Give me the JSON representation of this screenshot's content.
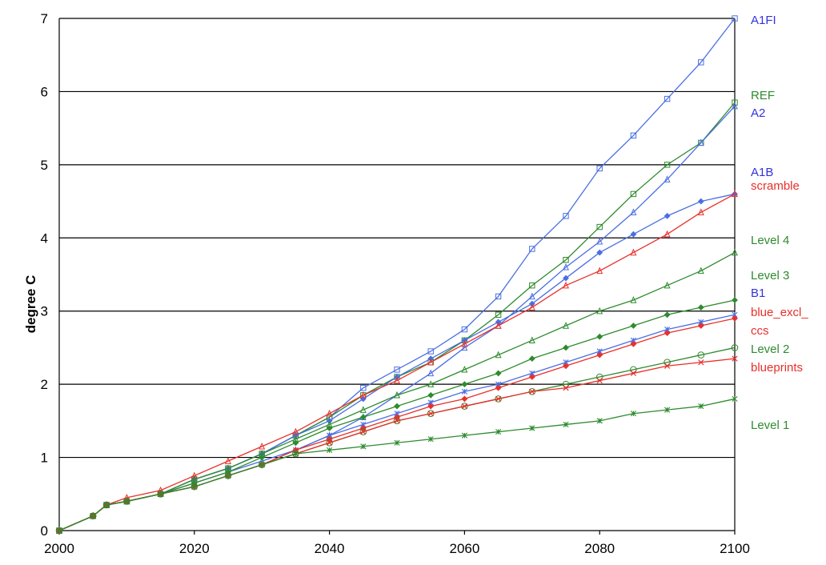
{
  "chart_data": {
    "type": "line",
    "title": "",
    "xlabel": "",
    "ylabel": "degree C",
    "xlim": [
      2000,
      2100
    ],
    "ylim": [
      0,
      7
    ],
    "x_ticks": [
      "2000",
      "2020",
      "2040",
      "2060",
      "2080",
      "2100"
    ],
    "y_ticks": [
      "0",
      "1",
      "2",
      "3",
      "4",
      "5",
      "6",
      "7"
    ],
    "grid": "horizontal",
    "legend": "right-side end labels",
    "series": [
      {
        "name": "A1FI",
        "color": "#4a6fe3",
        "marker": "square",
        "points": [
          [
            2000,
            0
          ],
          [
            2005,
            0.2
          ],
          [
            2007,
            0.35
          ],
          [
            2010,
            0.4
          ],
          [
            2015,
            0.5
          ],
          [
            2020,
            0.7
          ],
          [
            2025,
            0.85
          ],
          [
            2030,
            1.05
          ],
          [
            2035,
            1.3
          ],
          [
            2040,
            1.55
          ],
          [
            2045,
            1.95
          ],
          [
            2050,
            2.2
          ],
          [
            2055,
            2.45
          ],
          [
            2060,
            2.75
          ],
          [
            2065,
            3.2
          ],
          [
            2070,
            3.85
          ],
          [
            2075,
            4.3
          ],
          [
            2080,
            4.95
          ],
          [
            2085,
            5.4
          ],
          [
            2090,
            5.9
          ],
          [
            2095,
            6.4
          ],
          [
            2100,
            7.0
          ]
        ]
      },
      {
        "name": "REF",
        "color": "#2e8b2e",
        "marker": "square",
        "points": [
          [
            2000,
            0
          ],
          [
            2005,
            0.2
          ],
          [
            2007,
            0.35
          ],
          [
            2010,
            0.4
          ],
          [
            2015,
            0.5
          ],
          [
            2020,
            0.7
          ],
          [
            2025,
            0.85
          ],
          [
            2030,
            1.05
          ],
          [
            2035,
            1.3
          ],
          [
            2040,
            1.55
          ],
          [
            2045,
            1.85
          ],
          [
            2050,
            2.1
          ],
          [
            2055,
            2.3
          ],
          [
            2060,
            2.6
          ],
          [
            2065,
            2.95
          ],
          [
            2070,
            3.35
          ],
          [
            2075,
            3.7
          ],
          [
            2080,
            4.15
          ],
          [
            2085,
            4.6
          ],
          [
            2090,
            5.0
          ],
          [
            2095,
            5.3
          ],
          [
            2100,
            5.85
          ]
        ]
      },
      {
        "name": "A2",
        "color": "#4a6fe3",
        "marker": "triangle",
        "points": [
          [
            2000,
            0
          ],
          [
            2005,
            0.2
          ],
          [
            2007,
            0.35
          ],
          [
            2010,
            0.4
          ],
          [
            2015,
            0.5
          ],
          [
            2020,
            0.65
          ],
          [
            2025,
            0.8
          ],
          [
            2030,
            0.95
          ],
          [
            2035,
            1.1
          ],
          [
            2040,
            1.3
          ],
          [
            2045,
            1.55
          ],
          [
            2050,
            1.85
          ],
          [
            2055,
            2.15
          ],
          [
            2060,
            2.5
          ],
          [
            2065,
            2.8
          ],
          [
            2070,
            3.2
          ],
          [
            2075,
            3.6
          ],
          [
            2080,
            3.95
          ],
          [
            2085,
            4.35
          ],
          [
            2090,
            4.8
          ],
          [
            2095,
            5.3
          ],
          [
            2100,
            5.8
          ]
        ]
      },
      {
        "name": "A1B",
        "color": "#4a6fe3",
        "marker": "diamond",
        "points": [
          [
            2000,
            0
          ],
          [
            2005,
            0.2
          ],
          [
            2007,
            0.35
          ],
          [
            2010,
            0.4
          ],
          [
            2015,
            0.5
          ],
          [
            2020,
            0.7
          ],
          [
            2025,
            0.85
          ],
          [
            2030,
            1.05
          ],
          [
            2035,
            1.3
          ],
          [
            2040,
            1.5
          ],
          [
            2045,
            1.8
          ],
          [
            2050,
            2.1
          ],
          [
            2055,
            2.35
          ],
          [
            2060,
            2.6
          ],
          [
            2065,
            2.85
          ],
          [
            2070,
            3.1
          ],
          [
            2075,
            3.45
          ],
          [
            2080,
            3.8
          ],
          [
            2085,
            4.05
          ],
          [
            2090,
            4.3
          ],
          [
            2095,
            4.5
          ],
          [
            2100,
            4.6
          ]
        ]
      },
      {
        "name": "scramble",
        "color": "#e8302a",
        "marker": "triangle",
        "points": [
          [
            2000,
            0
          ],
          [
            2005,
            0.2
          ],
          [
            2007,
            0.35
          ],
          [
            2010,
            0.45
          ],
          [
            2015,
            0.55
          ],
          [
            2020,
            0.75
          ],
          [
            2025,
            0.95
          ],
          [
            2030,
            1.15
          ],
          [
            2035,
            1.35
          ],
          [
            2040,
            1.6
          ],
          [
            2045,
            1.85
          ],
          [
            2050,
            2.05
          ],
          [
            2055,
            2.3
          ],
          [
            2060,
            2.55
          ],
          [
            2065,
            2.8
          ],
          [
            2070,
            3.05
          ],
          [
            2075,
            3.35
          ],
          [
            2080,
            3.55
          ],
          [
            2085,
            3.8
          ],
          [
            2090,
            4.05
          ],
          [
            2095,
            4.35
          ],
          [
            2100,
            4.6
          ]
        ]
      },
      {
        "name": "Level 4",
        "color": "#2e8b2e",
        "marker": "triangle",
        "points": [
          [
            2000,
            0
          ],
          [
            2005,
            0.2
          ],
          [
            2007,
            0.35
          ],
          [
            2010,
            0.4
          ],
          [
            2015,
            0.5
          ],
          [
            2020,
            0.7
          ],
          [
            2025,
            0.85
          ],
          [
            2030,
            1.05
          ],
          [
            2035,
            1.25
          ],
          [
            2040,
            1.45
          ],
          [
            2045,
            1.65
          ],
          [
            2050,
            1.85
          ],
          [
            2055,
            2.0
          ],
          [
            2060,
            2.2
          ],
          [
            2065,
            2.4
          ],
          [
            2070,
            2.6
          ],
          [
            2075,
            2.8
          ],
          [
            2080,
            3.0
          ],
          [
            2085,
            3.15
          ],
          [
            2090,
            3.35
          ],
          [
            2095,
            3.55
          ],
          [
            2100,
            3.8
          ]
        ]
      },
      {
        "name": "Level 3",
        "color": "#2e8b2e",
        "marker": "diamond",
        "points": [
          [
            2000,
            0
          ],
          [
            2005,
            0.2
          ],
          [
            2007,
            0.35
          ],
          [
            2010,
            0.4
          ],
          [
            2015,
            0.5
          ],
          [
            2020,
            0.65
          ],
          [
            2025,
            0.8
          ],
          [
            2030,
            1.0
          ],
          [
            2035,
            1.2
          ],
          [
            2040,
            1.4
          ],
          [
            2045,
            1.55
          ],
          [
            2050,
            1.7
          ],
          [
            2055,
            1.85
          ],
          [
            2060,
            2.0
          ],
          [
            2065,
            2.15
          ],
          [
            2070,
            2.35
          ],
          [
            2075,
            2.5
          ],
          [
            2080,
            2.65
          ],
          [
            2085,
            2.8
          ],
          [
            2090,
            2.95
          ],
          [
            2095,
            3.05
          ],
          [
            2100,
            3.15
          ]
        ]
      },
      {
        "name": "B1",
        "color": "#4a6fe3",
        "marker": "asterisk",
        "points": [
          [
            2000,
            0
          ],
          [
            2005,
            0.2
          ],
          [
            2007,
            0.35
          ],
          [
            2010,
            0.4
          ],
          [
            2015,
            0.5
          ],
          [
            2020,
            0.6
          ],
          [
            2025,
            0.75
          ],
          [
            2030,
            0.9
          ],
          [
            2035,
            1.1
          ],
          [
            2040,
            1.3
          ],
          [
            2045,
            1.45
          ],
          [
            2050,
            1.6
          ],
          [
            2055,
            1.75
          ],
          [
            2060,
            1.9
          ],
          [
            2065,
            2.0
          ],
          [
            2070,
            2.15
          ],
          [
            2075,
            2.3
          ],
          [
            2080,
            2.45
          ],
          [
            2085,
            2.6
          ],
          [
            2090,
            2.75
          ],
          [
            2095,
            2.85
          ],
          [
            2100,
            2.95
          ]
        ]
      },
      {
        "name": "blue_excl_ccs",
        "color": "#e8302a",
        "marker": "diamond",
        "points": [
          [
            2000,
            0
          ],
          [
            2005,
            0.2
          ],
          [
            2007,
            0.35
          ],
          [
            2010,
            0.4
          ],
          [
            2015,
            0.5
          ],
          [
            2020,
            0.6
          ],
          [
            2025,
            0.75
          ],
          [
            2030,
            0.9
          ],
          [
            2035,
            1.1
          ],
          [
            2040,
            1.25
          ],
          [
            2045,
            1.4
          ],
          [
            2050,
            1.55
          ],
          [
            2055,
            1.7
          ],
          [
            2060,
            1.8
          ],
          [
            2065,
            1.95
          ],
          [
            2070,
            2.1
          ],
          [
            2075,
            2.25
          ],
          [
            2080,
            2.4
          ],
          [
            2085,
            2.55
          ],
          [
            2090,
            2.7
          ],
          [
            2095,
            2.8
          ],
          [
            2100,
            2.9
          ]
        ]
      },
      {
        "name": "Level 2",
        "color": "#2e8b2e",
        "marker": "circle",
        "points": [
          [
            2000,
            0
          ],
          [
            2005,
            0.2
          ],
          [
            2007,
            0.35
          ],
          [
            2010,
            0.4
          ],
          [
            2015,
            0.5
          ],
          [
            2020,
            0.6
          ],
          [
            2025,
            0.75
          ],
          [
            2030,
            0.9
          ],
          [
            2035,
            1.05
          ],
          [
            2040,
            1.2
          ],
          [
            2045,
            1.35
          ],
          [
            2050,
            1.5
          ],
          [
            2055,
            1.6
          ],
          [
            2060,
            1.7
          ],
          [
            2065,
            1.8
          ],
          [
            2070,
            1.9
          ],
          [
            2075,
            2.0
          ],
          [
            2080,
            2.1
          ],
          [
            2085,
            2.2
          ],
          [
            2090,
            2.3
          ],
          [
            2095,
            2.4
          ],
          [
            2100,
            2.5
          ]
        ]
      },
      {
        "name": "blueprints",
        "color": "#e8302a",
        "marker": "x",
        "points": [
          [
            2000,
            0
          ],
          [
            2005,
            0.2
          ],
          [
            2007,
            0.35
          ],
          [
            2010,
            0.4
          ],
          [
            2015,
            0.5
          ],
          [
            2020,
            0.6
          ],
          [
            2025,
            0.75
          ],
          [
            2030,
            0.9
          ],
          [
            2035,
            1.05
          ],
          [
            2040,
            1.2
          ],
          [
            2045,
            1.35
          ],
          [
            2050,
            1.5
          ],
          [
            2055,
            1.6
          ],
          [
            2060,
            1.7
          ],
          [
            2065,
            1.8
          ],
          [
            2070,
            1.9
          ],
          [
            2075,
            1.95
          ],
          [
            2080,
            2.05
          ],
          [
            2085,
            2.15
          ],
          [
            2090,
            2.25
          ],
          [
            2095,
            2.3
          ],
          [
            2100,
            2.35
          ]
        ]
      },
      {
        "name": "Level 1",
        "color": "#2e8b2e",
        "marker": "asterisk",
        "points": [
          [
            2000,
            0
          ],
          [
            2005,
            0.2
          ],
          [
            2007,
            0.35
          ],
          [
            2010,
            0.4
          ],
          [
            2015,
            0.5
          ],
          [
            2020,
            0.6
          ],
          [
            2025,
            0.75
          ],
          [
            2030,
            0.9
          ],
          [
            2035,
            1.05
          ],
          [
            2040,
            1.1
          ],
          [
            2045,
            1.15
          ],
          [
            2050,
            1.2
          ],
          [
            2055,
            1.25
          ],
          [
            2060,
            1.3
          ],
          [
            2065,
            1.35
          ],
          [
            2070,
            1.4
          ],
          [
            2075,
            1.45
          ],
          [
            2080,
            1.5
          ],
          [
            2085,
            1.6
          ],
          [
            2090,
            1.65
          ],
          [
            2095,
            1.7
          ],
          [
            2100,
            1.8
          ]
        ]
      }
    ],
    "end_labels": [
      {
        "text": "A1FI",
        "color": "#3333dd"
      },
      {
        "text": "REF",
        "color": "#2e8b2e"
      },
      {
        "text": "A2",
        "color": "#3333dd"
      },
      {
        "text": "A1B",
        "color": "#3333dd"
      },
      {
        "text": "scramble",
        "color": "#e8302a"
      },
      {
        "text": "Level 4",
        "color": "#2e8b2e"
      },
      {
        "text": "Level 3",
        "color": "#2e8b2e"
      },
      {
        "text": "B1",
        "color": "#3333dd"
      },
      {
        "text": "blue_excl_",
        "color": "#e8302a"
      },
      {
        "text": "ccs",
        "color": "#e8302a"
      },
      {
        "text": "Level 2",
        "color": "#2e8b2e"
      },
      {
        "text": "blueprints",
        "color": "#e8302a"
      },
      {
        "text": "Level 1",
        "color": "#2e8b2e"
      }
    ]
  }
}
